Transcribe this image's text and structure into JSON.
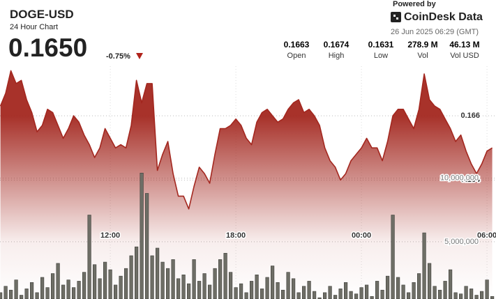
{
  "header": {
    "symbol": "DOGE-USD",
    "subtitle": "24 Hour Chart",
    "price": "0.1650",
    "change": "-0.75%",
    "powered_by": "Powered by",
    "brand": "CoinDesk Data",
    "timestamp": "26 Jun 2025 06:29 (GMT)"
  },
  "stats": [
    {
      "value": "0.1663",
      "label": "Open"
    },
    {
      "value": "0.1674",
      "label": "High"
    },
    {
      "value": "0.1631",
      "label": "Low"
    },
    {
      "value": "278.9 M",
      "label": "Vol"
    },
    {
      "value": "46.13 M",
      "label": "Vol USD"
    }
  ],
  "chart_data": {
    "type": "line",
    "x": [
      6.75,
      7,
      7.25,
      7.5,
      7.75,
      8,
      8.25,
      8.5,
      8.75,
      9,
      9.25,
      9.5,
      9.75,
      10,
      10.25,
      10.5,
      10.75,
      11,
      11.25,
      11.5,
      11.75,
      12,
      12.25,
      12.5,
      12.75,
      13,
      13.25,
      13.5,
      13.75,
      14,
      14.25,
      14.5,
      14.75,
      15,
      15.25,
      15.5,
      15.75,
      16,
      16.25,
      16.5,
      16.75,
      17,
      17.25,
      17.5,
      17.75,
      18,
      18.25,
      18.5,
      18.75,
      19,
      19.25,
      19.5,
      19.75,
      20,
      20.25,
      20.5,
      20.75,
      21,
      21.25,
      21.5,
      21.75,
      22,
      22.25,
      22.5,
      22.75,
      23,
      23.25,
      23.5,
      23.75,
      24,
      24.25,
      24.5,
      24.75,
      25,
      25.25,
      25.5,
      25.75,
      26,
      26.25,
      26.5,
      26.75,
      27,
      27.25,
      27.5,
      27.75,
      28,
      28.25,
      28.5,
      28.75,
      29,
      29.25,
      29.5,
      29.75,
      30,
      30.25
    ],
    "xlim": [
      6.73,
      30.43
    ],
    "xticks": [
      {
        "value": 12,
        "label": "12:00"
      },
      {
        "value": 18,
        "label": "18:00"
      },
      {
        "value": 24,
        "label": "00:00"
      },
      {
        "value": 30,
        "label": "06:00"
      }
    ],
    "ylim": [
      0.1603,
      0.1696
    ],
    "yticks": [
      0.164,
      0.166
    ],
    "y2lim": [
      500000,
      24000000
    ],
    "y2ticks": [
      {
        "value": 5000000,
        "label": "5,000,000"
      },
      {
        "value": 10000000,
        "label": "10,000,000"
      }
    ],
    "grid": true,
    "series": [
      {
        "type": "area",
        "color": "#a3271f",
        "values": [
          0.1663,
          0.1667,
          0.1674,
          0.167,
          0.1671,
          0.1665,
          0.1661,
          0.1655,
          0.1657,
          0.1662,
          0.1661,
          0.1657,
          0.1653,
          0.1656,
          0.166,
          0.1658,
          0.1654,
          0.1651,
          0.1647,
          0.165,
          0.1656,
          0.1653,
          0.165,
          0.1651,
          0.165,
          0.1657,
          0.1671,
          0.1664,
          0.167,
          0.167,
          0.1643,
          0.1648,
          0.1652,
          0.1642,
          0.1635,
          0.1635,
          0.1631,
          0.1638,
          0.1644,
          0.1642,
          0.1639,
          0.1648,
          0.1656,
          0.1656,
          0.1657,
          0.1659,
          0.1657,
          0.1653,
          0.1651,
          0.1658,
          0.1661,
          0.1662,
          0.166,
          0.1658,
          0.1659,
          0.1662,
          0.1664,
          0.1665,
          0.1661,
          0.1662,
          0.166,
          0.1657,
          0.165,
          0.1646,
          0.1644,
          0.164,
          0.1642,
          0.1646,
          0.1648,
          0.165,
          0.1653,
          0.165,
          0.165,
          0.1646,
          0.1652,
          0.166,
          0.1662,
          0.1662,
          0.1659,
          0.1656,
          0.1662,
          0.1673,
          0.1665,
          0.1663,
          0.1662,
          0.1659,
          0.1656,
          0.1652,
          0.1654,
          0.1649,
          0.1645,
          0.1642,
          0.1645,
          0.1649,
          0.165
        ]
      },
      {
        "type": "bar",
        "axis": "y2",
        "color": "#6e6e66",
        "values": [
          1000000,
          1500000,
          1200000,
          2000000,
          800000,
          1300000,
          1800000,
          1000000,
          2200000,
          1400000,
          2500000,
          3300000,
          1600000,
          2000000,
          1400000,
          1900000,
          2600000,
          7100000,
          3200000,
          2100000,
          3400000,
          2800000,
          1600000,
          2300000,
          2900000,
          3900000,
          4600000,
          10400000,
          8800000,
          3900000,
          4500000,
          3400000,
          2900000,
          3600000,
          2100000,
          2400000,
          1700000,
          3600000,
          1900000,
          2500000,
          1600000,
          2900000,
          3600000,
          4100000,
          2600000,
          1400000,
          1700000,
          1000000,
          1900000,
          2400000,
          1300000,
          2200000,
          3100000,
          1800000,
          1200000,
          2600000,
          2100000,
          1000000,
          1500000,
          1900000,
          1100000,
          600000,
          1000000,
          1500000,
          800000,
          1300000,
          1800000,
          1100000,
          900000,
          1400000,
          1600000,
          700000,
          1900000,
          1200000,
          2300000,
          7100000,
          2200000,
          1600000,
          1000000,
          1800000,
          2500000,
          5700000,
          3300000,
          1500000,
          1200000,
          1900000,
          2800000,
          1000000,
          900000,
          1500000,
          1300000,
          800000,
          1100000,
          2000000,
          700000
        ]
      }
    ]
  }
}
